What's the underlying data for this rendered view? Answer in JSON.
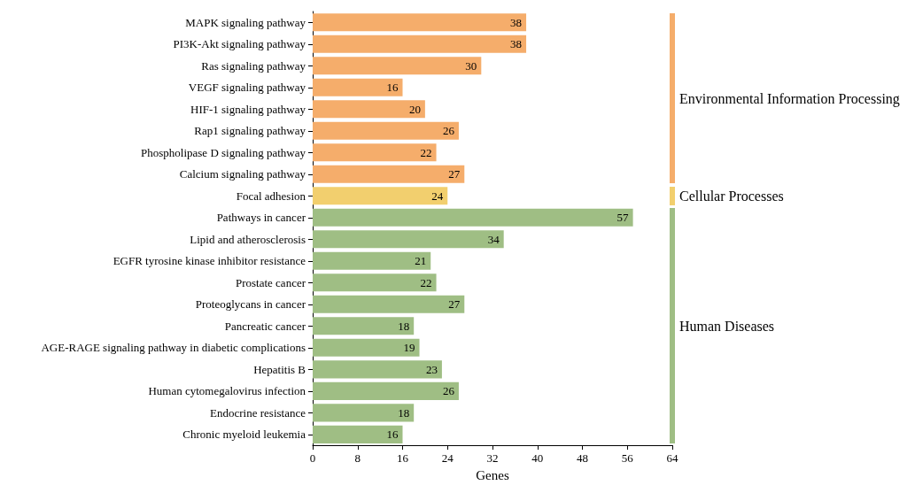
{
  "chart_data": {
    "type": "bar",
    "orientation": "horizontal",
    "xlabel": "Genes",
    "categories": [
      "MAPK signaling pathway",
      "PI3K-Akt signaling pathway",
      "Ras signaling pathway",
      "VEGF signaling pathway",
      "HIF-1 signaling pathway",
      "Rap1 signaling pathway",
      "Phospholipase D signaling pathway",
      "Calcium signaling pathway",
      "Focal adhesion",
      "Pathways in cancer",
      "Lipid and atherosclerosis",
      "EGFR tyrosine kinase inhibitor resistance",
      "Prostate cancer",
      "Proteoglycans in cancer",
      "Pancreatic cancer",
      "AGE-RAGE signaling pathway in diabetic complications",
      "Hepatitis B",
      "Human cytomegalovirus infection",
      "Endocrine resistance",
      "Chronic myeloid leukemia"
    ],
    "values": [
      38,
      38,
      30,
      16,
      20,
      26,
      22,
      27,
      24,
      57,
      34,
      21,
      22,
      27,
      18,
      19,
      23,
      26,
      18,
      16
    ],
    "colors": [
      "#f5ad6b",
      "#f5ad6b",
      "#f5ad6b",
      "#f5ad6b",
      "#f5ad6b",
      "#f5ad6b",
      "#f5ad6b",
      "#f5ad6b",
      "#f2cf6e",
      "#9fbe84",
      "#9fbe84",
      "#9fbe84",
      "#9fbe84",
      "#9fbe84",
      "#9fbe84",
      "#9fbe84",
      "#9fbe84",
      "#9fbe84",
      "#9fbe84",
      "#9fbe84"
    ],
    "xlim": [
      0,
      64
    ],
    "xticks": [
      0,
      8,
      16,
      24,
      32,
      40,
      48,
      56,
      64
    ],
    "data_labels": true,
    "grid": false,
    "annotations": [
      "Environmental Information Processing",
      "Cellular Processes",
      "Human Diseases"
    ]
  }
}
